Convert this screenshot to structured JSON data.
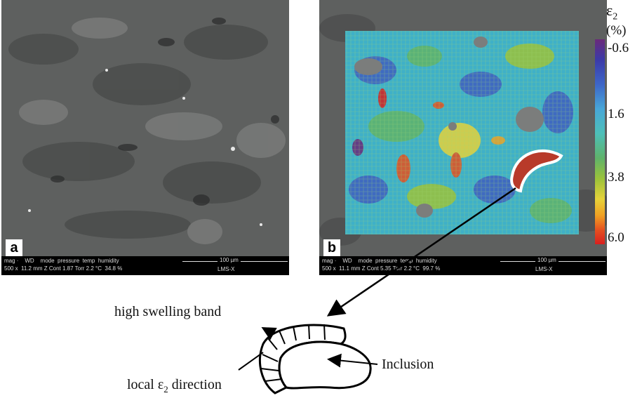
{
  "panel_a": {
    "letter": "a",
    "databar_row1": "mag ·    WD    mode  pressure  temp  humidity",
    "databar_row2": "500 x  11.2 mm Z Cont 1.87 Torr 2.2 °C  34.8 %",
    "scale": "100 µm",
    "instrument": "LMS-X"
  },
  "panel_b": {
    "letter": "b",
    "databar_row1": "mag ·    WD    mode  pressure  temp  humidity",
    "databar_row2": "500 x  11.1 mm Z Cont 5.35 Torr 2.2 °C  99.7 %",
    "scale": "100 µm",
    "instrument": "LMS-X"
  },
  "colorbar": {
    "symbol": "ε",
    "subscript": "2",
    "unit": "(%)",
    "ticks": [
      "-0.6",
      "1.6",
      "3.8",
      "6.0"
    ],
    "colors": [
      "#6a2a7a",
      "#3d66c8",
      "#48a7d8",
      "#5fb36a",
      "#e6d23a",
      "#f0a023",
      "#d81f1f"
    ]
  },
  "annotations": {
    "band": "high swelling band",
    "inclusion": "Inclusion",
    "direction_prefix": "local ε",
    "direction_sub": "2",
    "direction_suffix": " direction"
  }
}
